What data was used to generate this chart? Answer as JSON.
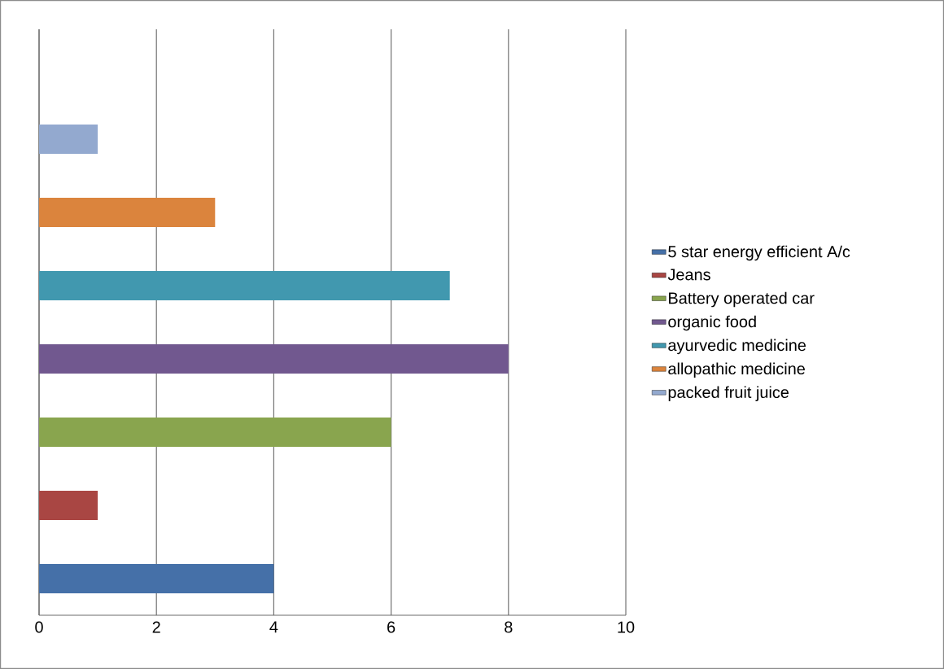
{
  "chart_data": {
    "type": "bar",
    "orientation": "horizontal",
    "categories": [
      null,
      null,
      null,
      null,
      null,
      null,
      null,
      null
    ],
    "series": [
      {
        "name": "5 star energy efficient A/c",
        "color": "#4570A8",
        "values": [
          null,
          null,
          null,
          null,
          null,
          null,
          null,
          4
        ]
      },
      {
        "name": "Jeans",
        "color": "#A94643",
        "values": [
          null,
          null,
          null,
          null,
          null,
          null,
          1,
          null
        ]
      },
      {
        "name": "Battery operated car",
        "color": "#89A54E",
        "values": [
          null,
          null,
          null,
          null,
          null,
          6,
          null,
          null
        ]
      },
      {
        "name": "organic food",
        "color": "#71588F",
        "values": [
          null,
          null,
          null,
          null,
          8,
          null,
          null,
          null
        ]
      },
      {
        "name": "ayurvedic medicine",
        "color": "#4198AF",
        "values": [
          null,
          null,
          null,
          7,
          null,
          null,
          null,
          null
        ]
      },
      {
        "name": "allopathic medicine",
        "color": "#DB843D",
        "values": [
          null,
          null,
          3,
          null,
          null,
          null,
          null,
          null
        ]
      },
      {
        "name": "packed fruit juice",
        "color": "#93A9CF",
        "values": [
          null,
          1,
          null,
          null,
          null,
          null,
          null,
          null
        ]
      }
    ],
    "xlim": [
      0,
      10
    ],
    "xticks": [
      0,
      2,
      4,
      6,
      8,
      10
    ],
    "grid": "x",
    "legend": "right"
  }
}
